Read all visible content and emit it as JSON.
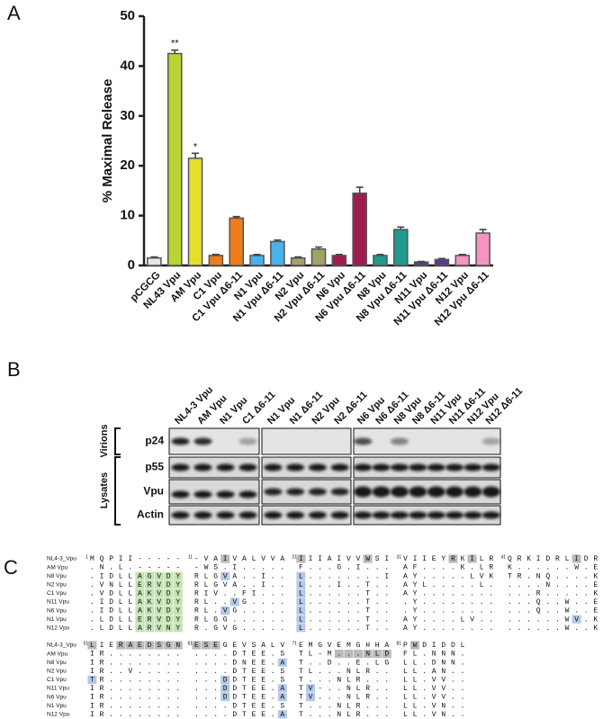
{
  "panels": {
    "a": "A",
    "b": "B",
    "c": "C"
  },
  "chart_data": {
    "type": "bar",
    "ylabel": "% Maximal Release",
    "categories": [
      "pCGCG",
      "NL43 Vpu",
      "AM Vpu",
      "C1 Vpu",
      "C1 Vpu Δ6-11",
      "N1 Vpu",
      "N1 Vpu Δ6-11",
      "N2 Vpu",
      "N2 Vpu Δ6-11",
      "N6 Vpu",
      "N6 Vpu Δ6-11",
      "N8 Vpu",
      "N8 Vpu Δ6-11",
      "N11 Vpu",
      "N11 Vpu Δ6-11",
      "N12 Vpu",
      "N12 Vpu Δ6-11"
    ],
    "values": [
      1.5,
      42.5,
      21.5,
      2,
      9.5,
      2,
      4.8,
      1.5,
      3.3,
      2,
      14.5,
      2,
      7.2,
      0.7,
      1.2,
      2,
      6.5
    ],
    "errors": [
      0.2,
      0.7,
      1,
      0.2,
      0.3,
      0.2,
      0.3,
      0.2,
      0.4,
      0.2,
      1.2,
      0.2,
      0.5,
      0.1,
      0.2,
      0.2,
      0.7
    ],
    "colors": [
      "#e6e6e6",
      "#b8d432",
      "#e6de2c",
      "#f07c1c",
      "#f07c1c",
      "#48b2ea",
      "#48b2ea",
      "#a3a06a",
      "#a3a06a",
      "#9c1c50",
      "#9c1c50",
      "#1f9a8c",
      "#1f9a8c",
      "#5c3c8c",
      "#5c3c8c",
      "#f494c4",
      "#f494c4"
    ],
    "annotations": [
      null,
      "**",
      "*",
      null,
      null,
      null,
      null,
      null,
      null,
      null,
      null,
      null,
      null,
      null,
      null,
      null,
      null
    ],
    "ylim": [
      0,
      50
    ],
    "yticks": [
      0,
      10,
      20,
      30,
      40,
      50
    ]
  },
  "blot": {
    "lanes": [
      "NL4-3 Vpu",
      "AM Vpu",
      "N1 Vpu",
      "C1 Δ6-11",
      "N1 Vpu",
      "N1 Δ6-11",
      "N2 Vpu",
      "N2 Δ6-11",
      "N6 Vpu",
      "N6 Δ6-11",
      "N8 Vpu",
      "N8 Δ6-11",
      "N11 Vpu",
      "N11 Δ6-11",
      "N12 Vpu",
      "N12 Δ6-11"
    ],
    "groups": [
      "Virions",
      "Lysates"
    ],
    "rows": [
      "p24",
      "p55",
      "Vpu",
      "Actin"
    ]
  },
  "alignment": {
    "blocks": [
      {
        "markers": [
          "1",
          "11",
          "21",
          "31",
          "41"
        ],
        "rows": [
          {
            "name": "NL4-3_Vpu",
            "seq": [
              "MQPII-----",
              "-VAIVALVVA",
              "IIIAIVVWSI",
              "VIIEYRKILR",
              "QRKIDRLIDR"
            ]
          },
          {
            "name": "AM Vpu",
            "seq": [
              ".N.L.-----",
              "-WS.I.....",
              "F...G.I...",
              "AF....K.LR",
              "K......W.E"
            ]
          },
          {
            "name": "N8 Vpu",
            "seq": [
              ".IDLLAGVDY",
              "RLGVA..I..",
              "L........I",
              "AY.....LVK",
              "TR.NQ....K"
            ]
          },
          {
            "name": "N2 Vpu",
            "seq": [
              ".VNLLERVDY",
              "RLGVA..I..",
              "L...I..T..",
              "AYL.....L.",
              "....N....E"
            ]
          },
          {
            "name": "C1 Vpu",
            "seq": [
              ".VDLLAKVDY",
              "RIV..FI...",
              "L......T..",
              "AY........",
              "...R.....K"
            ]
          },
          {
            "name": "N11 Vpu",
            "seq": [
              ".IDLLAKVDY",
              "RL..VG....",
              "L......T..",
              ".Y........",
              "...Q..W..E"
            ]
          },
          {
            "name": "N6 Vpu",
            "seq": [
              ".IDLLAKVDY",
              "RL.VG.....",
              "L......T..",
              ".Y........",
              "...Q..W..E"
            ]
          },
          {
            "name": "N1 Vpu",
            "seq": [
              ".LDLLERVDY",
              "RLGG......",
              "L......T..",
              "AY....LV..",
              "......WV.K"
            ]
          },
          {
            "name": "N12 Vpu",
            "seq": [
              ".LDLLARVNY",
              "R.GVG.....",
              "L......T..",
              "AY........",
              "......W..K"
            ]
          }
        ]
      },
      {
        "markers": [
          "51",
          "61",
          "71",
          "81"
        ],
        "rows": [
          {
            "name": "NL4-3_Vpu",
            "seq": [
              "LIERAEDSGN",
              "ESEGEVSALV",
              "EMGVEMGHHA",
              "PWDIDDL"
            ]
          },
          {
            "name": "AM Vpu",
            "seq": [
              "IR........",
              "....DTEE.S",
              "TL-M...NLD",
              "FL.NNN."
            ]
          },
          {
            "name": "N8 Vpu",
            "seq": [
              "IR........",
              "....DNEE.A",
              "T..D..E.LG",
              "LL.DNN."
            ]
          },
          {
            "name": "N2 Vpu",
            "seq": [
              "IR..V.....",
              "....DTEE.S",
              "TL...NLR..",
              "LL.AN.."
            ]
          },
          {
            "name": "C1 Vpu",
            "seq": [
              "TR........",
              "...DDTEE.S",
              "T...NLR...",
              "LL.VV.."
            ]
          },
          {
            "name": "N11 Vpu",
            "seq": [
              "IR........",
              "...DDTEE.A",
              "TV-..NLR..",
              "LL.VV.."
            ]
          },
          {
            "name": "N6 Vpu",
            "seq": [
              "IR........",
              "...DDTEE.A",
              "TV...NLR..",
              "LL.VV.."
            ]
          },
          {
            "name": "N1 Vpu",
            "seq": [
              "IR........",
              "....DTEE.S",
              "T...NLR...",
              "LL.VN.."
            ]
          },
          {
            "name": "N12 Vpu",
            "seq": [
              "IR........",
              "....DTEE.A",
              "T...NLR...",
              "LL.VN.."
            ]
          }
        ]
      }
    ]
  }
}
